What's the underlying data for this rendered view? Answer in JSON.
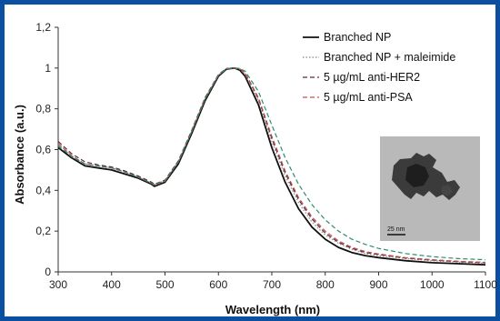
{
  "chart_data": {
    "type": "line",
    "title": "",
    "xlabel": "Wavelength (nm)",
    "ylabel": "Absorbance (a.u.)",
    "xlim": [
      300,
      1100
    ],
    "ylim": [
      0,
      1.2
    ],
    "xticks": [
      300,
      400,
      500,
      600,
      700,
      800,
      900,
      1000,
      1100
    ],
    "yticks": [
      {
        "value": 0,
        "label": "0"
      },
      {
        "value": 0.2,
        "label": "0,2"
      },
      {
        "value": 0.4,
        "label": "0,4"
      },
      {
        "value": 0.6,
        "label": "0,6"
      },
      {
        "value": 0.8,
        "label": "0,8"
      },
      {
        "value": 1.0,
        "label": "1"
      },
      {
        "value": 1.2,
        "label": "1,2"
      }
    ],
    "grid": false,
    "legend_position": "top-right",
    "series": [
      {
        "name": "Branched NP",
        "color": "#111111",
        "dash": "solid",
        "x": [
          300,
          325,
          350,
          375,
          400,
          425,
          450,
          475,
          480,
          500,
          525,
          550,
          575,
          600,
          615,
          630,
          640,
          650,
          675,
          700,
          725,
          750,
          775,
          800,
          825,
          850,
          875,
          900,
          950,
          1000,
          1050,
          1100
        ],
        "y": [
          0.61,
          0.56,
          0.52,
          0.51,
          0.5,
          0.48,
          0.46,
          0.43,
          0.42,
          0.44,
          0.53,
          0.68,
          0.84,
          0.96,
          0.995,
          1.0,
          0.99,
          0.96,
          0.82,
          0.61,
          0.44,
          0.31,
          0.22,
          0.16,
          0.12,
          0.095,
          0.08,
          0.07,
          0.055,
          0.045,
          0.04,
          0.035
        ]
      },
      {
        "name": "Branched NP + maleimide",
        "color": "#9a9a9a",
        "dash": "dotted",
        "x": [
          300,
          325,
          350,
          375,
          400,
          425,
          450,
          475,
          480,
          500,
          525,
          550,
          575,
          600,
          615,
          630,
          640,
          650,
          675,
          700,
          725,
          750,
          775,
          800,
          825,
          850,
          875,
          900,
          950,
          1000,
          1050,
          1100
        ],
        "y": [
          0.63,
          0.57,
          0.53,
          0.52,
          0.51,
          0.49,
          0.465,
          0.435,
          0.425,
          0.445,
          0.54,
          0.69,
          0.85,
          0.965,
          0.998,
          1.0,
          0.995,
          0.97,
          0.84,
          0.64,
          0.47,
          0.34,
          0.245,
          0.18,
          0.14,
          0.11,
          0.09,
          0.08,
          0.065,
          0.055,
          0.048,
          0.042
        ]
      },
      {
        "name": "5 µg/mL anti-HER2",
        "color": "#5a2a3a",
        "dash": "dashed",
        "x": [
          300,
          325,
          350,
          375,
          400,
          425,
          450,
          475,
          480,
          500,
          525,
          550,
          575,
          600,
          615,
          630,
          640,
          650,
          675,
          700,
          725,
          750,
          775,
          800,
          825,
          850,
          875,
          900,
          950,
          1000,
          1050,
          1100
        ],
        "y": [
          0.64,
          0.58,
          0.54,
          0.525,
          0.515,
          0.495,
          0.47,
          0.44,
          0.43,
          0.45,
          0.545,
          0.695,
          0.855,
          0.968,
          0.998,
          1.0,
          0.997,
          0.975,
          0.85,
          0.655,
          0.485,
          0.355,
          0.26,
          0.19,
          0.145,
          0.115,
          0.095,
          0.085,
          0.068,
          0.058,
          0.05,
          0.045
        ]
      },
      {
        "name": "5 µg/mL anti-PSA",
        "color": "#c0504d",
        "dash": "dashed",
        "x": [
          300,
          325,
          350,
          375,
          400,
          425,
          450,
          475,
          480,
          500,
          525,
          550,
          575,
          600,
          615,
          630,
          640,
          650,
          675,
          700,
          725,
          750,
          775,
          800,
          825,
          850,
          875,
          900,
          950,
          1000,
          1050,
          1100
        ],
        "y": [
          0.63,
          0.57,
          0.53,
          0.52,
          0.51,
          0.49,
          0.465,
          0.435,
          0.425,
          0.445,
          0.54,
          0.69,
          0.85,
          0.965,
          0.997,
          1.0,
          0.997,
          0.977,
          0.855,
          0.665,
          0.495,
          0.365,
          0.27,
          0.2,
          0.152,
          0.12,
          0.1,
          0.088,
          0.07,
          0.06,
          0.052,
          0.047
        ]
      },
      {
        "name": "",
        "color": "#2e8b6e",
        "dash": "dashed",
        "x": [
          300,
          325,
          350,
          375,
          400,
          425,
          450,
          475,
          480,
          500,
          525,
          550,
          575,
          600,
          615,
          630,
          640,
          650,
          675,
          700,
          725,
          750,
          775,
          800,
          825,
          850,
          875,
          900,
          950,
          1000,
          1050,
          1100
        ],
        "y": [
          0.62,
          0.565,
          0.53,
          0.52,
          0.51,
          0.49,
          0.465,
          0.435,
          0.428,
          0.448,
          0.54,
          0.69,
          0.85,
          0.965,
          0.997,
          1.0,
          0.998,
          0.985,
          0.885,
          0.72,
          0.56,
          0.43,
          0.33,
          0.255,
          0.2,
          0.16,
          0.135,
          0.115,
          0.09,
          0.075,
          0.065,
          0.06
        ]
      }
    ],
    "inset": {
      "scale_label": "25 nm"
    }
  }
}
